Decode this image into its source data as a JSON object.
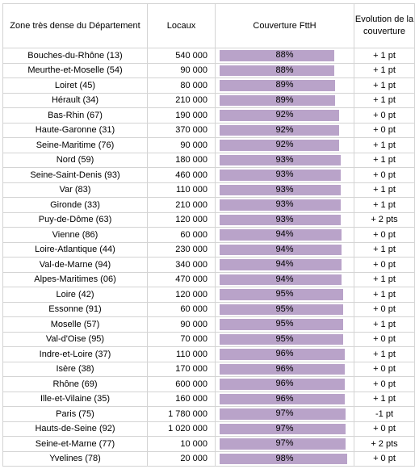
{
  "chart_data": {
    "type": "table",
    "columns": [
      "Zone très dense du Département",
      "Locaux",
      "Couverture FttH",
      "Evolution de la couverture"
    ],
    "bar_color": "#b9a3c9",
    "bar_scale_max_percent": 100,
    "rows": [
      {
        "departement": "Bouches-du-Rhône (13)",
        "locaux": "540 000",
        "couverture": 88,
        "couverture_label": "88%",
        "evolution": "+ 1 pt"
      },
      {
        "departement": "Meurthe-et-Moselle (54)",
        "locaux": "90 000",
        "couverture": 88,
        "couverture_label": "88%",
        "evolution": "+ 1 pt"
      },
      {
        "departement": "Loiret (45)",
        "locaux": "80 000",
        "couverture": 89,
        "couverture_label": "89%",
        "evolution": "+ 1 pt"
      },
      {
        "departement": "Hérault (34)",
        "locaux": "210 000",
        "couverture": 89,
        "couverture_label": "89%",
        "evolution": "+ 1 pt"
      },
      {
        "departement": "Bas-Rhin (67)",
        "locaux": "190 000",
        "couverture": 92,
        "couverture_label": "92%",
        "evolution": "+ 0 pt"
      },
      {
        "departement": "Haute-Garonne (31)",
        "locaux": "370 000",
        "couverture": 92,
        "couverture_label": "92%",
        "evolution": "+ 0 pt"
      },
      {
        "departement": "Seine-Maritime (76)",
        "locaux": "90 000",
        "couverture": 92,
        "couverture_label": "92%",
        "evolution": "+ 1 pt"
      },
      {
        "departement": "Nord (59)",
        "locaux": "180 000",
        "couverture": 93,
        "couverture_label": "93%",
        "evolution": "+ 1 pt"
      },
      {
        "departement": "Seine-Saint-Denis (93)",
        "locaux": "460 000",
        "couverture": 93,
        "couverture_label": "93%",
        "evolution": "+ 0 pt"
      },
      {
        "departement": "Var (83)",
        "locaux": "110 000",
        "couverture": 93,
        "couverture_label": "93%",
        "evolution": "+ 1 pt"
      },
      {
        "departement": "Gironde (33)",
        "locaux": "210 000",
        "couverture": 93,
        "couverture_label": "93%",
        "evolution": "+ 1 pt"
      },
      {
        "departement": "Puy-de-Dôme (63)",
        "locaux": "120 000",
        "couverture": 93,
        "couverture_label": "93%",
        "evolution": "+ 2 pts"
      },
      {
        "departement": "Vienne (86)",
        "locaux": "60 000",
        "couverture": 94,
        "couverture_label": "94%",
        "evolution": "+ 0 pt"
      },
      {
        "departement": "Loire-Atlantique (44)",
        "locaux": "230 000",
        "couverture": 94,
        "couverture_label": "94%",
        "evolution": "+ 1 pt"
      },
      {
        "departement": "Val-de-Marne (94)",
        "locaux": "340 000",
        "couverture": 94,
        "couverture_label": "94%",
        "evolution": "+ 0 pt"
      },
      {
        "departement": "Alpes-Maritimes (06)",
        "locaux": "470 000",
        "couverture": 94,
        "couverture_label": "94%",
        "evolution": "+ 1 pt"
      },
      {
        "departement": "Loire (42)",
        "locaux": "120 000",
        "couverture": 95,
        "couverture_label": "95%",
        "evolution": "+ 1 pt"
      },
      {
        "departement": "Essonne (91)",
        "locaux": "60 000",
        "couverture": 95,
        "couverture_label": "95%",
        "evolution": "+ 0 pt"
      },
      {
        "departement": "Moselle (57)",
        "locaux": "90 000",
        "couverture": 95,
        "couverture_label": "95%",
        "evolution": "+ 1 pt"
      },
      {
        "departement": "Val-d'Oise (95)",
        "locaux": "70 000",
        "couverture": 95,
        "couverture_label": "95%",
        "evolution": "+ 0 pt"
      },
      {
        "departement": "Indre-et-Loire (37)",
        "locaux": "110 000",
        "couverture": 96,
        "couverture_label": "96%",
        "evolution": "+ 1 pt"
      },
      {
        "departement": "Isère (38)",
        "locaux": "170 000",
        "couverture": 96,
        "couverture_label": "96%",
        "evolution": "+ 0 pt"
      },
      {
        "departement": "Rhône (69)",
        "locaux": "600 000",
        "couverture": 96,
        "couverture_label": "96%",
        "evolution": "+ 0 pt"
      },
      {
        "departement": "Ille-et-Vilaine (35)",
        "locaux": "160 000",
        "couverture": 96,
        "couverture_label": "96%",
        "evolution": "+ 1 pt"
      },
      {
        "departement": "Paris (75)",
        "locaux": "1 780 000",
        "couverture": 97,
        "couverture_label": "97%",
        "evolution": "-1 pt"
      },
      {
        "departement": "Hauts-de-Seine (92)",
        "locaux": "1 020 000",
        "couverture": 97,
        "couverture_label": "97%",
        "evolution": "+ 0 pt"
      },
      {
        "departement": "Seine-et-Marne (77)",
        "locaux": "10 000",
        "couverture": 97,
        "couverture_label": "97%",
        "evolution": "+ 2 pts"
      },
      {
        "departement": "Yvelines (78)",
        "locaux": "20 000",
        "couverture": 98,
        "couverture_label": "98%",
        "evolution": "+ 0 pt"
      }
    ]
  }
}
